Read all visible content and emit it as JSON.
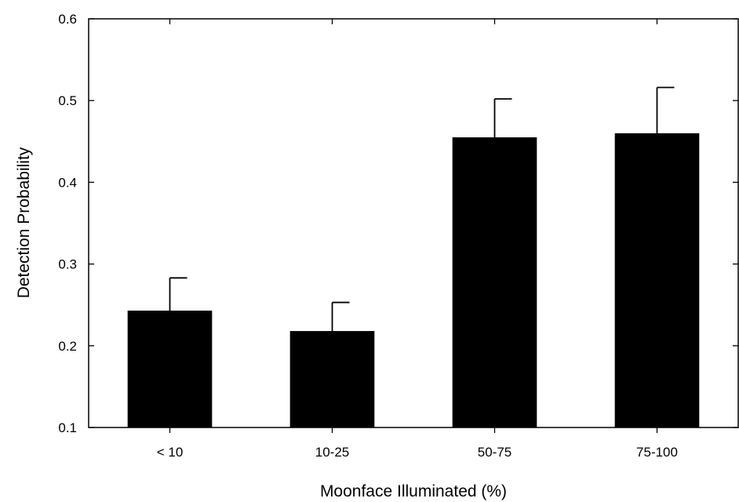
{
  "chart_data": {
    "type": "bar",
    "title": "",
    "xlabel": "Moonface Illuminated (%)",
    "ylabel": "Detection Probability",
    "categories": [
      "< 10",
      "10-25",
      "50-75",
      "75-100"
    ],
    "values": [
      0.243,
      0.218,
      0.455,
      0.46
    ],
    "error_upper": [
      0.283,
      0.253,
      0.502,
      0.516
    ],
    "ylim": [
      0.1,
      0.6
    ],
    "yticks": [
      0.1,
      0.2,
      0.3,
      0.4,
      0.5,
      0.6
    ],
    "ytick_labels": [
      "0.1",
      "0.2",
      "0.3",
      "0.4",
      "0.5",
      "0.6"
    ],
    "grid": false,
    "legend": "none",
    "colors": {
      "bar": "#000000",
      "axis": "#000000",
      "background": "#ffffff"
    }
  }
}
